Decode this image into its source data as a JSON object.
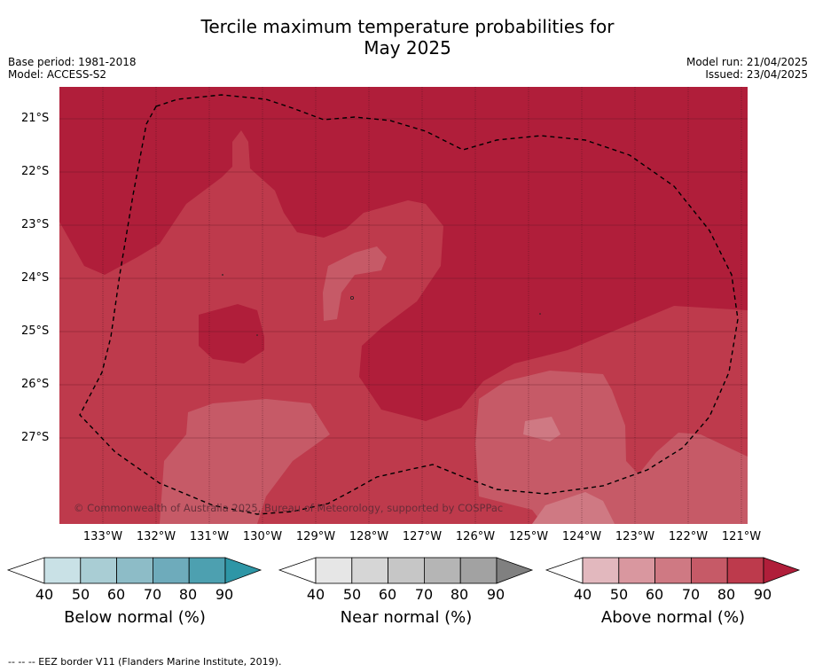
{
  "title_line1": "Tercile maximum temperature probabilities for",
  "title_line2": "May 2025",
  "left_meta": {
    "base_period": "Base period: 1981-2018",
    "model": "Model: ACCESS-S2"
  },
  "right_meta": {
    "model_run": "Model run: 21/04/2025",
    "issued": "Issued: 23/04/2025"
  },
  "copyright": "© Commonwealth of Australia 2025, Bureau of Meteorology, supported by COSPPac",
  "lat_labels": [
    "21°S",
    "22°S",
    "23°S",
    "24°S",
    "25°S",
    "26°S",
    "27°S"
  ],
  "lon_labels": [
    "133°W",
    "132°W",
    "131°W",
    "130°W",
    "129°W",
    "128°W",
    "127°W",
    "126°W",
    "125°W",
    "124°W",
    "123°W",
    "122°W",
    "121°W"
  ],
  "colorbars": [
    {
      "label": "Below normal (%)",
      "ticks": [
        "40",
        "50",
        "60",
        "70",
        "80",
        "90"
      ],
      "colors": [
        "#c9e1e6",
        "#a9cdd4",
        "#8dbcc7",
        "#6eabbb",
        "#4da0b0"
      ],
      "arrow_color": "#2e96a6"
    },
    {
      "label": "Near normal (%)",
      "ticks": [
        "40",
        "50",
        "60",
        "70",
        "80",
        "90"
      ],
      "colors": [
        "#e6e6e6",
        "#d6d6d6",
        "#c6c6c6",
        "#b5b5b5",
        "#a2a2a2"
      ],
      "arrow_color": "#808080"
    },
    {
      "label": "Above normal (%)",
      "ticks": [
        "40",
        "50",
        "60",
        "70",
        "80",
        "90"
      ],
      "colors": [
        "#e2b8be",
        "#d9979f",
        "#cf7983",
        "#c65a67",
        "#bd3a4c"
      ],
      "arrow_color": "#b01e3a"
    }
  ],
  "footer": "--  --  -- EEZ border V11 (Flanders Marine Institute, 2019).",
  "map_colors": {
    "p90": "#b01e3a",
    "p80": "#be3a4c",
    "p70": "#c65a67",
    "p60": "#cf7983"
  }
}
